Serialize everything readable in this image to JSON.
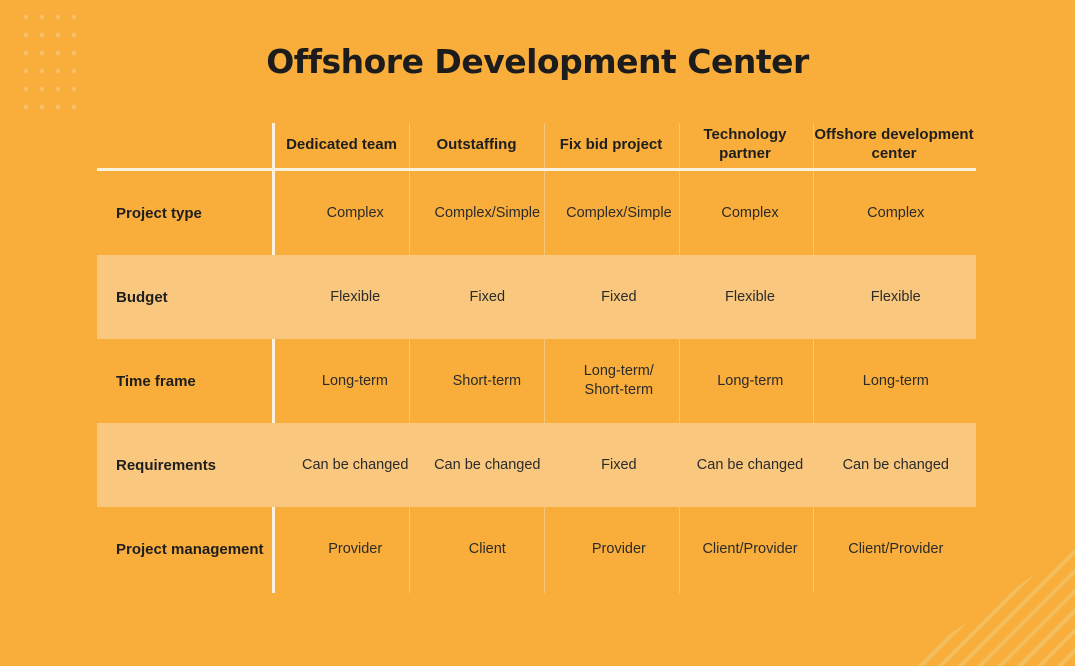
{
  "title": "Offshore Development Center",
  "table": {
    "columns": [
      "",
      "Dedicated team",
      "Outstaffing",
      "Fix bid project",
      "Technology partner",
      "Offshore development center"
    ],
    "rows": [
      {
        "label": "Project type",
        "values": [
          "Complex",
          "Complex/Simple",
          "Complex/Simple",
          "Complex",
          "Complex"
        ]
      },
      {
        "label": "Budget",
        "values": [
          "Flexible",
          "Fixed",
          "Fixed",
          "Flexible",
          "Flexible"
        ]
      },
      {
        "label": "Time frame",
        "values": [
          "Long-term",
          "Short-term",
          "Long-term/ Short-term",
          "Long-term",
          "Long-term"
        ]
      },
      {
        "label": "Requirements",
        "values": [
          "Can be changed",
          "Can be changed",
          "Fixed",
          "Can be changed",
          "Can be changed"
        ]
      },
      {
        "label": "Project management",
        "values": [
          "Provider",
          "Client",
          "Provider",
          "Client/Provider",
          "Client/Provider"
        ]
      }
    ]
  },
  "colors": {
    "background": "#F9AE3B",
    "shaded_row": "#F9C87E",
    "rule": "#FBF1DF"
  }
}
